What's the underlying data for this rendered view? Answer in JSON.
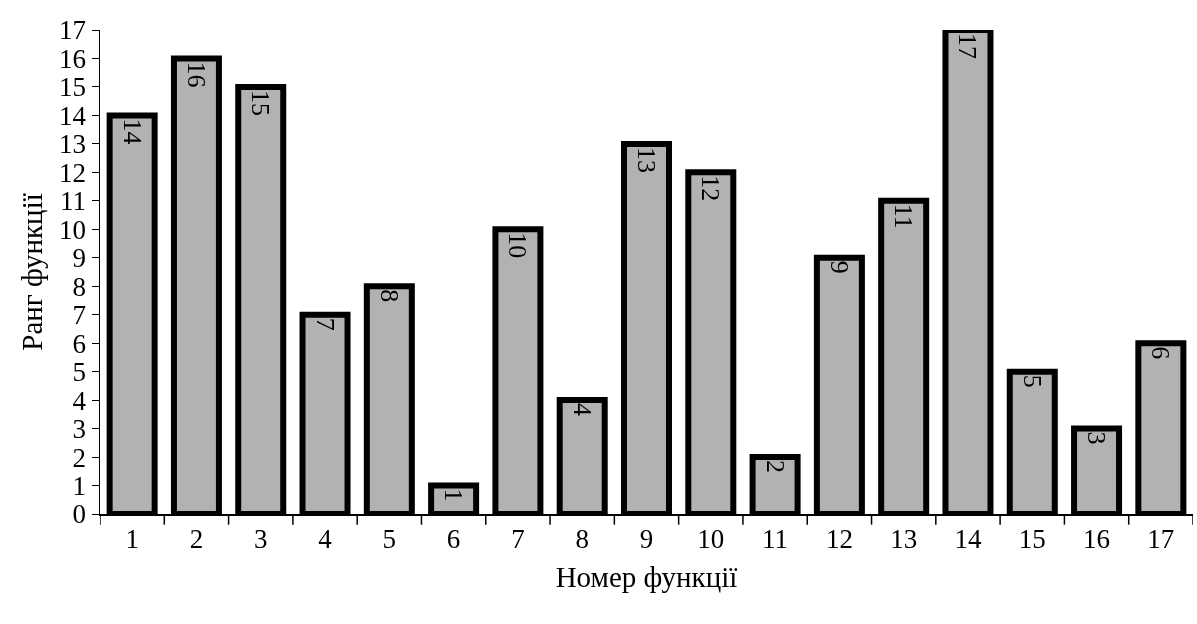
{
  "chart_data": {
    "type": "bar",
    "xlabel": "Номер функції",
    "ylabel": "Ранг функції",
    "categories": [
      "1",
      "2",
      "3",
      "4",
      "5",
      "6",
      "7",
      "8",
      "9",
      "10",
      "11",
      "12",
      "13",
      "14",
      "15",
      "16",
      "17"
    ],
    "values": [
      14,
      16,
      15,
      7,
      8,
      1,
      10,
      4,
      13,
      12,
      2,
      9,
      11,
      17,
      5,
      3,
      6
    ],
    "color": "#b2b2b2",
    "ylim": [
      0,
      17
    ],
    "yticks": [
      0,
      1,
      2,
      3,
      4,
      5,
      6,
      7,
      8,
      9,
      10,
      11,
      12,
      13,
      14,
      15,
      16,
      17
    ],
    "data_labels": true,
    "grid": false,
    "legend": false
  }
}
